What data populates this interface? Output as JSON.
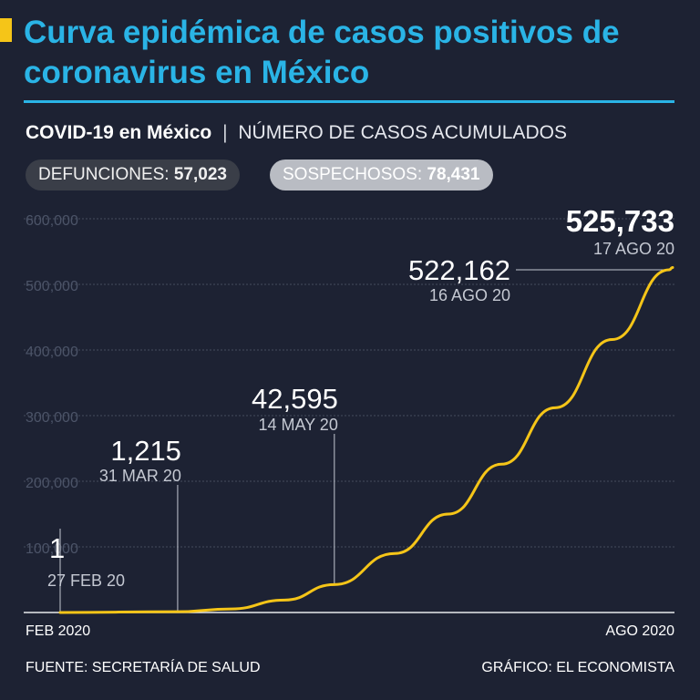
{
  "title": "Curva epidémica de casos positivos de coronavirus en México",
  "subtitle": {
    "bold": "COVID-19 en México",
    "separator": "|",
    "light": "NÚMERO DE CASOS ACUMULADOS"
  },
  "pills": {
    "defunciones_label": "DEFUNCIONES:",
    "defunciones_value": "57,023",
    "sospechosos_label": "SOSPECHOSOS:",
    "sospechosos_value": "78,431"
  },
  "footer": {
    "source": "FUENTE: SECRETARÍA DE SALUD",
    "credit": "GRÁFICO: EL ECONOMISTA"
  },
  "colors": {
    "background": "#1d2233",
    "title": "#2ab4e6",
    "line": "#f5c518",
    "grid": "#454c5e"
  },
  "chart_data": {
    "type": "line",
    "title": "NÚMERO DE CASOS ACUMULADOS",
    "xlabel": "",
    "ylabel": "",
    "x_start_label": "FEB 2020",
    "x_end_label": "AGO 2020",
    "x_range": [
      "2020-02-27",
      "2020-08-17"
    ],
    "ylim": [
      0,
      600000
    ],
    "yticks": [
      "100,000",
      "200,000",
      "300,000",
      "400,000",
      "500,000",
      "600,000"
    ],
    "grid": true,
    "series": [
      {
        "values": [
          {
            "x": "2020-02-27",
            "y": 1
          },
          {
            "x": "2020-03-31",
            "y": 1215
          },
          {
            "x": "2020-04-15",
            "y": 5400
          },
          {
            "x": "2020-04-30",
            "y": 19000
          },
          {
            "x": "2020-05-14",
            "y": 42595
          },
          {
            "x": "2020-05-31",
            "y": 90000
          },
          {
            "x": "2020-06-15",
            "y": 150000
          },
          {
            "x": "2020-06-30",
            "y": 226000
          },
          {
            "x": "2020-07-15",
            "y": 312000
          },
          {
            "x": "2020-07-31",
            "y": 416000
          },
          {
            "x": "2020-08-16",
            "y": 522162
          },
          {
            "x": "2020-08-17",
            "y": 525733
          }
        ]
      }
    ],
    "annotations": [
      {
        "value": "1",
        "date": "27 FEB 20",
        "x": "2020-02-27"
      },
      {
        "value": "1,215",
        "date": "31 MAR 20",
        "x": "2020-03-31"
      },
      {
        "value": "42,595",
        "date": "14 MAY 20",
        "x": "2020-05-14"
      },
      {
        "value": "522,162",
        "date": "16 AGO 20",
        "x": "2020-08-16"
      },
      {
        "value": "525,733",
        "date": "17 AGO 20",
        "x": "2020-08-17"
      }
    ]
  }
}
